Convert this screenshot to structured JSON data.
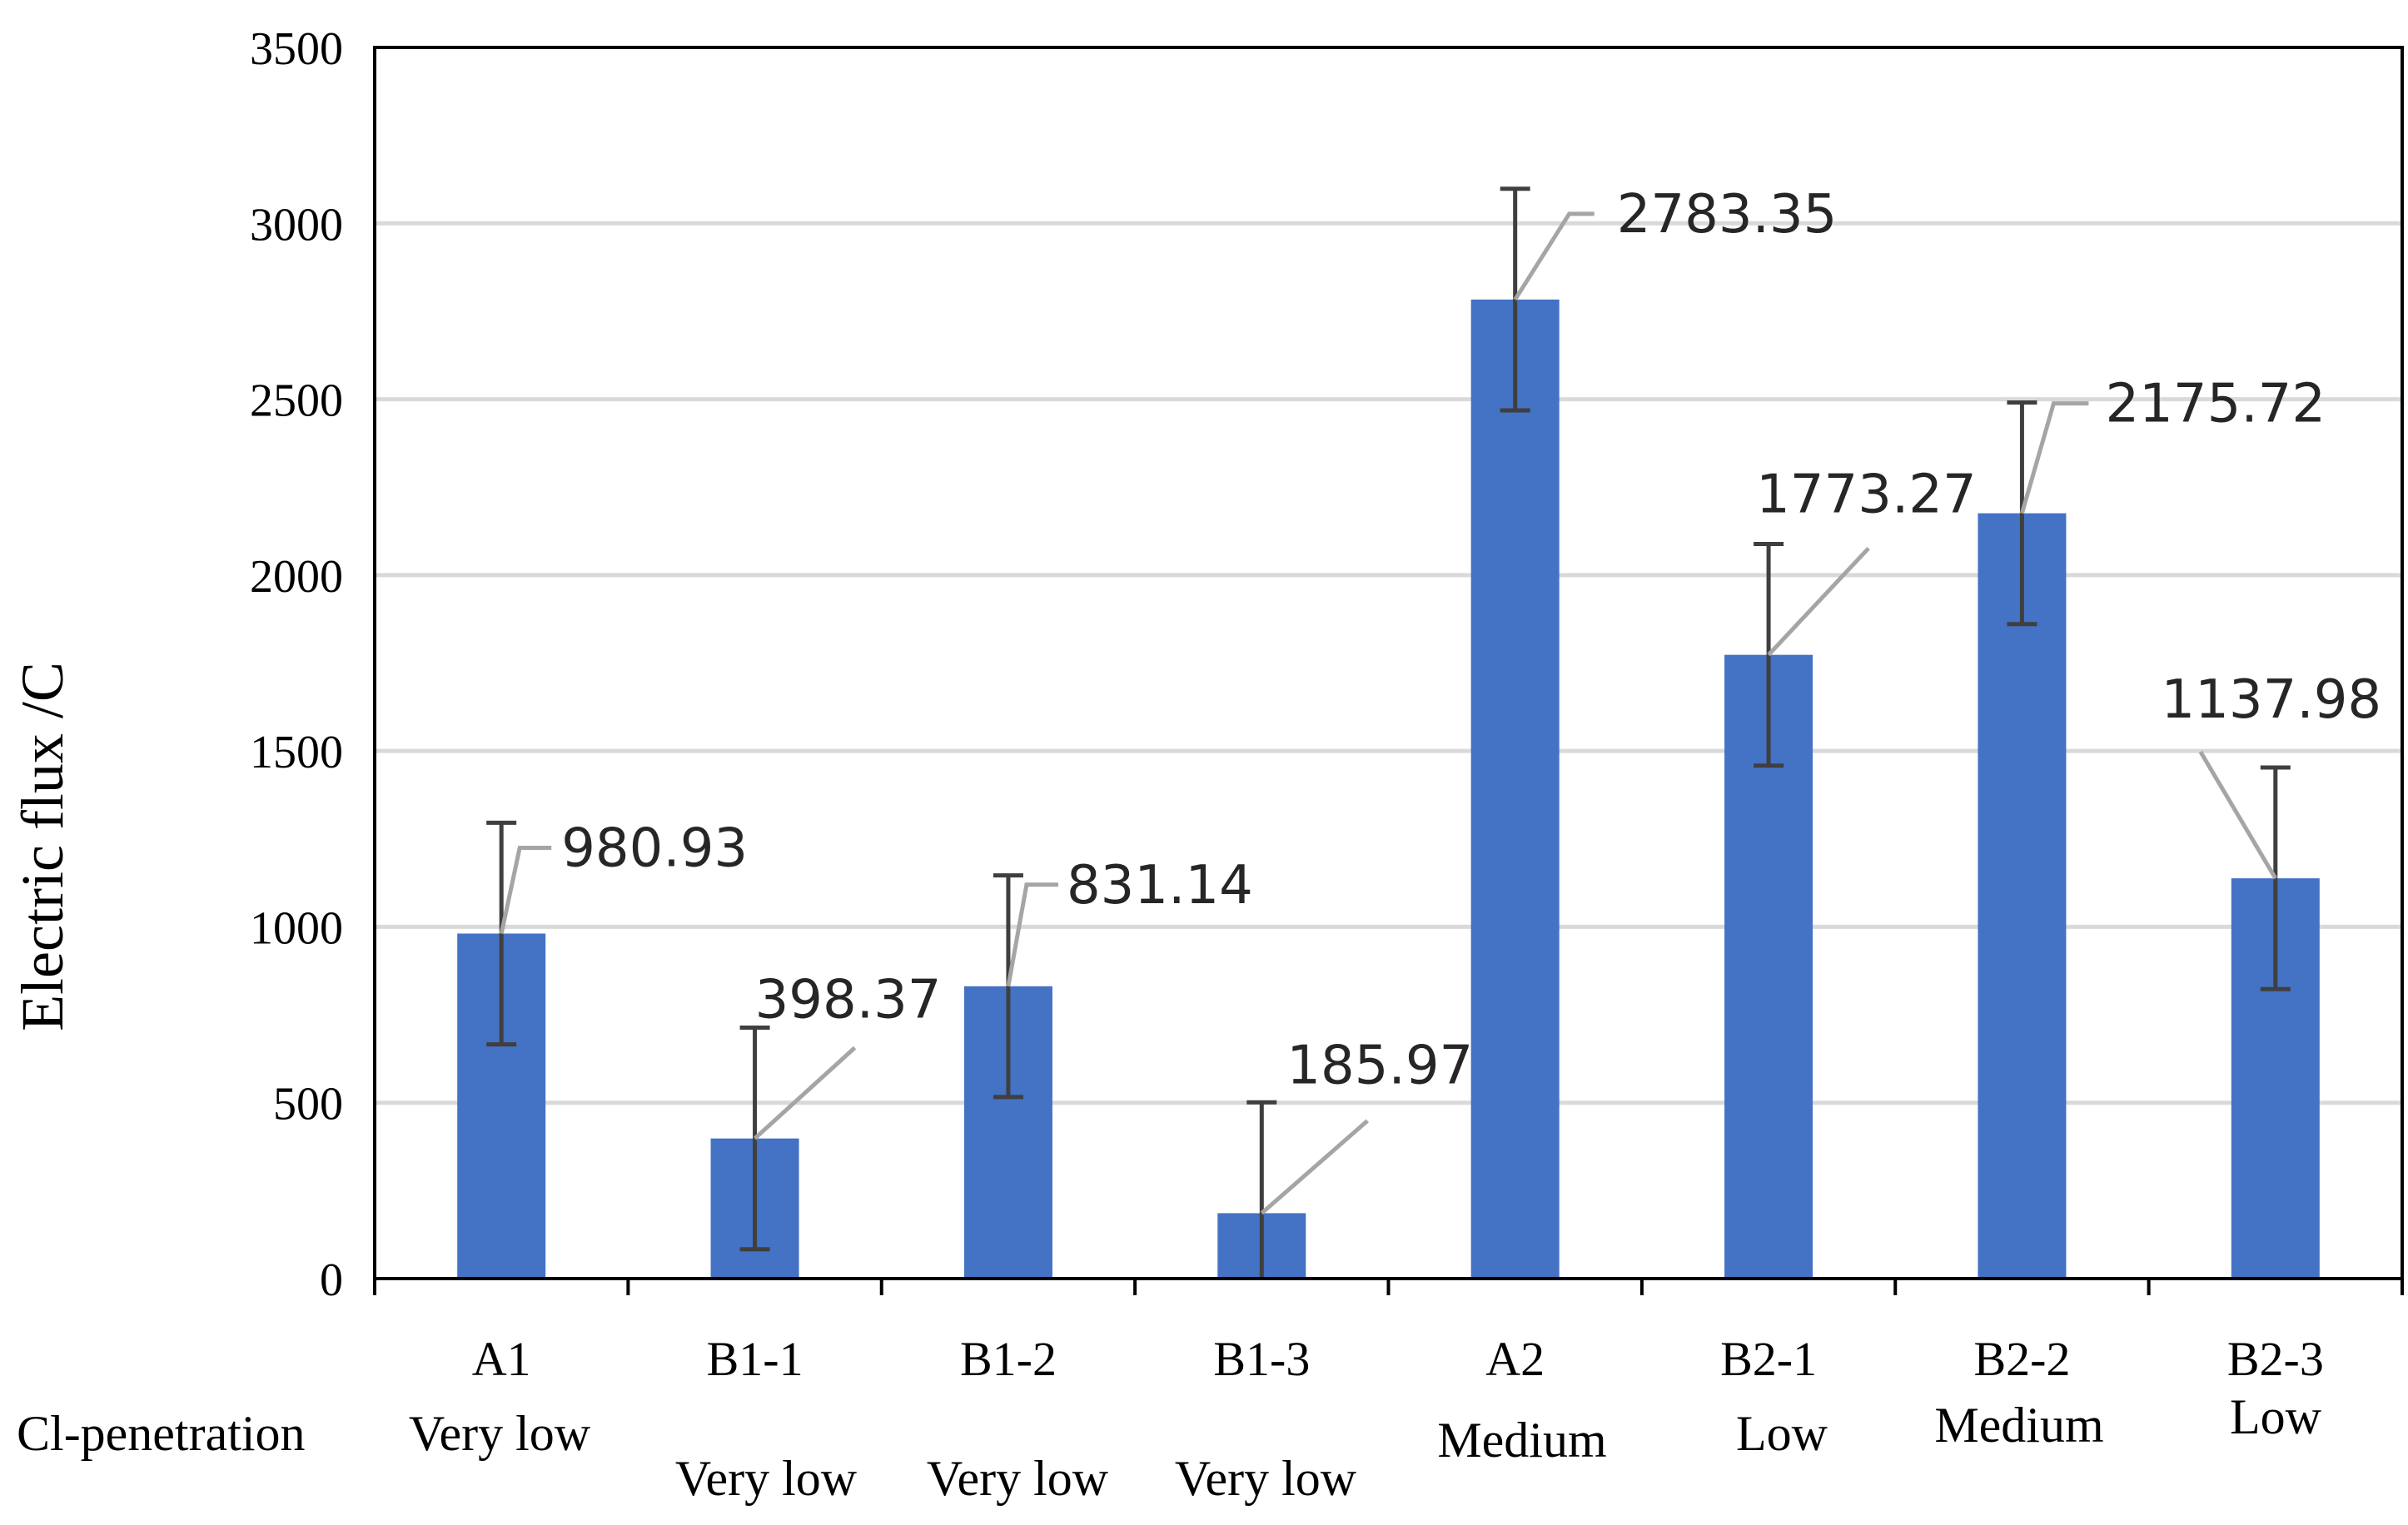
{
  "chart_data": {
    "type": "bar",
    "title": "",
    "xlabel": "",
    "ylabel": "Electric flux /C",
    "ylim": [
      0,
      3500
    ],
    "yticks": [
      0,
      500,
      1000,
      1500,
      2000,
      2500,
      3000,
      3500
    ],
    "grid": true,
    "categories": [
      "A1",
      "B1-1",
      "B1-2",
      "B1-3",
      "A2",
      "B2-1",
      "B2-2",
      "B2-3"
    ],
    "values": [
      980.93,
      398.37,
      831.14,
      185.97,
      2783.35,
      1773.27,
      2175.72,
      1137.98
    ],
    "data_labels": [
      "980.93",
      "398.37",
      "831.14",
      "185.97",
      "2783.35",
      "1773.27",
      "2175.72",
      "1137.98"
    ],
    "error_bars": [
      315,
      315,
      315,
      315,
      315,
      315,
      315,
      315
    ],
    "penetration_row_label": "Cl-penetration",
    "penetration": [
      "Very low",
      "Very low",
      "Very low",
      "Very low",
      "Medium",
      "Low",
      "Medium",
      "Low"
    ],
    "colors": {
      "bar": "#4472C4",
      "error_bar": "#3F3F3F",
      "leader_line": "#A5A5A5",
      "grid": "#D9D9D9",
      "axis": "#000000",
      "text": "#000000",
      "label_text": "#262626"
    }
  }
}
